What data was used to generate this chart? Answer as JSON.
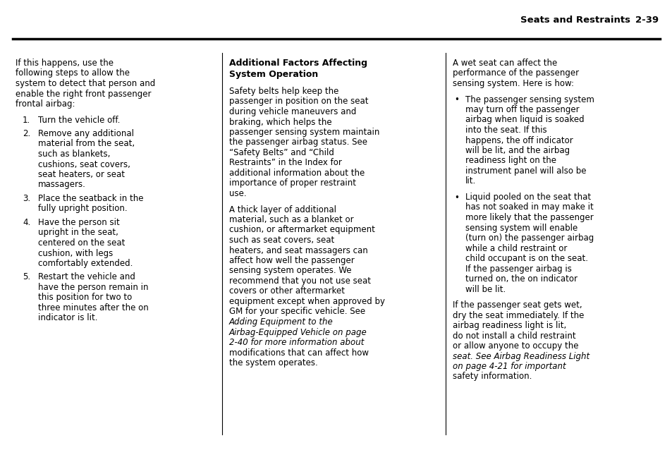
{
  "bg_color": "#ffffff",
  "page_width": 9.54,
  "page_height": 6.38,
  "dpi": 100,
  "header_title": "Seats and Restraints",
  "header_page": "2-39",
  "col1_intro": "If this happens, use the following steps to allow the system to detect that person and enable the right front passenger frontal airbag:",
  "col1_items": [
    "Turn the vehicle off.",
    "Remove any additional material from the seat, such as blankets, cushions, seat covers, seat heaters, or seat massagers.",
    "Place the seatback in the fully upright position.",
    "Have the person sit upright in the seat, centered on the seat cushion, with legs comfortably extended.",
    "Restart the vehicle and have the person remain in this position for two to three minutes after the on indicator is lit."
  ],
  "col2_heading1": "Additional Factors Affecting",
  "col2_heading2": "System Operation",
  "col2_para1": "Safety belts help keep the passenger in position on the seat during vehicle maneuvers and braking, which helps the passenger sensing system maintain the passenger airbag status. See “Safety Belts” and “Child Restraints” in the Index for additional information about the importance of proper restraint use.",
  "col2_para2_pre": "A thick layer of additional material, such as a blanket or cushion, or aftermarket equipment such as seat covers, seat heaters, and seat massagers can affect how well the passenger sensing system operates. We recommend that you not use seat covers or other aftermarket equipment except when approved by GM for your specific vehicle. See ",
  "col2_para2_italic": "Adding Equipment to the Airbag-Equipped Vehicle on page 2-40",
  "col2_para2_post": " for more information about modifications that can affect how the system operates.",
  "col3_para1": "A wet seat can affect the performance of the passenger sensing system. Here is how:",
  "col3_bullet1": "The passenger sensing system may turn off the passenger airbag when liquid is soaked into the seat. If this happens, the off indicator will be lit, and the airbag readiness light on the instrument panel will also be lit.",
  "col3_bullet2": "Liquid pooled on the seat that has not soaked in may make it more likely that the passenger sensing system will enable (turn on) the passenger airbag while a child restraint or child occupant is on the seat. If the passenger airbag is turned on, the on indicator will be lit.",
  "col3_para2_pre": "If the passenger seat gets wet, dry the seat immediately. If the airbag readiness light is lit, do not install a child restraint or allow anyone to occupy the seat. See ",
  "col3_para2_italic": "Airbag Readiness Light on page 4-21",
  "col3_para2_post": " for important safety information.",
  "font_size": 8.5,
  "heading_font_size": 9.0,
  "header_font_size": 9.5
}
